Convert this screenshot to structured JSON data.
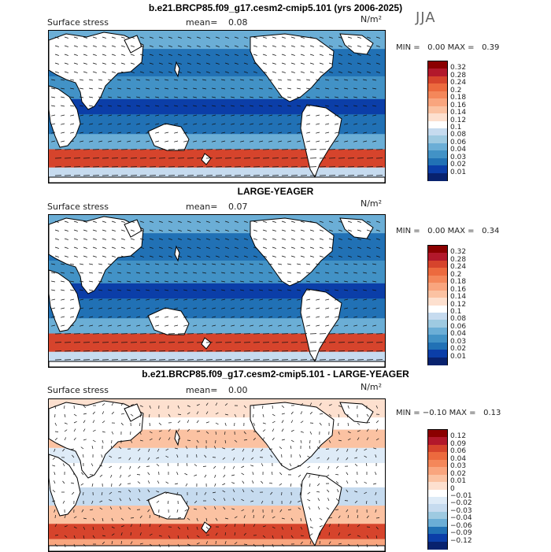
{
  "main_title": "b.e21.BRCP85.f09_g17.cesm2-cmip5.101 (yrs 2006-2025)",
  "season": "JJA",
  "panels": [
    {
      "title": "",
      "var_label": "Surface stress",
      "mean_label": "mean=",
      "mean_value": "0.08",
      "units": "N/m²",
      "min_label": "MIN =",
      "min_value": "0.00",
      "max_label": "MAX =",
      "max_value": "0.39",
      "colorbar": {
        "labels": [
          "0.32",
          "0.28",
          "0.24",
          "0.2",
          "0.18",
          "0.16",
          "0.14",
          "0.12",
          "0.1",
          "0.08",
          "0.06",
          "0.04",
          "0.03",
          "0.02",
          "0.01"
        ],
        "colors": [
          "#8b0000",
          "#b2182b",
          "#d6442c",
          "#ec6a3e",
          "#f4875a",
          "#f9a57e",
          "#fbc2a2",
          "#fde0cf",
          "#ffffff",
          "#c6dbef",
          "#9ecae1",
          "#6baed6",
          "#4292c6",
          "#2171b5",
          "#0b3ea8",
          "#08226e"
        ]
      },
      "field": "absolute"
    },
    {
      "title": "LARGE-YEAGER",
      "var_label": "Surface stress",
      "mean_label": "mean=",
      "mean_value": "0.07",
      "units": "N/m²",
      "min_label": "MIN =",
      "min_value": "0.00",
      "max_label": "MAX =",
      "max_value": "0.34",
      "colorbar": {
        "labels": [
          "0.32",
          "0.28",
          "0.24",
          "0.2",
          "0.18",
          "0.16",
          "0.14",
          "0.12",
          "0.1",
          "0.08",
          "0.06",
          "0.04",
          "0.03",
          "0.02",
          "0.01"
        ],
        "colors": [
          "#8b0000",
          "#b2182b",
          "#d6442c",
          "#ec6a3e",
          "#f4875a",
          "#f9a57e",
          "#fbc2a2",
          "#fde0cf",
          "#ffffff",
          "#c6dbef",
          "#9ecae1",
          "#6baed6",
          "#4292c6",
          "#2171b5",
          "#0b3ea8",
          "#08226e"
        ]
      },
      "field": "absolute"
    },
    {
      "title": "b.e21.BRCP85.f09_g17.cesm2-cmip5.101 - LARGE-YEAGER",
      "var_label": "Surface stress",
      "mean_label": "mean=",
      "mean_value": "0.00",
      "units": "N/m²",
      "min_label": "MIN =",
      "min_value": "−0.10",
      "max_label": "MAX =",
      "max_value": "0.13",
      "colorbar": {
        "labels": [
          "0.12",
          "0.09",
          "0.06",
          "0.04",
          "0.03",
          "0.02",
          "0.01",
          "0",
          "−0.01",
          "−0.02",
          "−0.03",
          "−0.04",
          "−0.06",
          "−0.09",
          "−0.12"
        ],
        "colors": [
          "#8b0000",
          "#b2182b",
          "#d6442c",
          "#ec6a3e",
          "#f4875a",
          "#f9a57e",
          "#fbc2a2",
          "#fde0cf",
          "#ffffff",
          "#deebf7",
          "#c6dbef",
          "#9ecae1",
          "#6baed6",
          "#2171b5",
          "#0b3ea8",
          "#08226e"
        ]
      },
      "field": "difference"
    }
  ]
}
